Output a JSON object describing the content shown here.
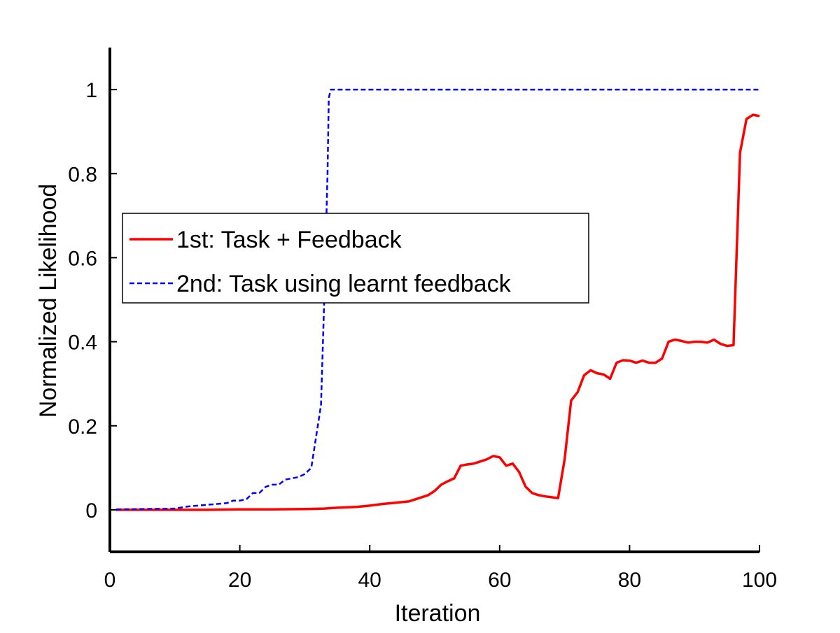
{
  "chart_data": {
    "type": "line",
    "title": "",
    "xlabel": "Iteration",
    "ylabel": "Normalized Likelihood",
    "xlim": [
      0,
      100
    ],
    "ylim": [
      -0.1,
      1.1
    ],
    "xticks": [
      0,
      20,
      40,
      60,
      80,
      100
    ],
    "yticks": [
      0,
      0.2,
      0.4,
      0.6,
      0.8,
      1
    ],
    "legend_position": "center-left",
    "grid": false,
    "series": [
      {
        "name": "1st: Task + Feedback",
        "color": "#ff0000",
        "line_style": "solid",
        "x": [
          1,
          5,
          10,
          15,
          20,
          25,
          30,
          33,
          35,
          38,
          40,
          42,
          44,
          46,
          47,
          48,
          49,
          50,
          51,
          52,
          53,
          54,
          55,
          56,
          57,
          58,
          59,
          60,
          61,
          62,
          63,
          64,
          65,
          66,
          67,
          68,
          69,
          70,
          71,
          72,
          73,
          74,
          75,
          76,
          77,
          78,
          79,
          80,
          81,
          82,
          83,
          84,
          85,
          86,
          87,
          88,
          89,
          90,
          91,
          92,
          93,
          94,
          95,
          96,
          97,
          98,
          99,
          100
        ],
        "y": [
          0,
          0,
          0,
          0,
          0.001,
          0.001,
          0.002,
          0.003,
          0.005,
          0.007,
          0.01,
          0.014,
          0.017,
          0.02,
          0.025,
          0.03,
          0.035,
          0.045,
          0.06,
          0.068,
          0.075,
          0.105,
          0.108,
          0.11,
          0.115,
          0.12,
          0.128,
          0.125,
          0.105,
          0.11,
          0.09,
          0.055,
          0.04,
          0.035,
          0.032,
          0.03,
          0.028,
          0.12,
          0.26,
          0.28,
          0.32,
          0.332,
          0.325,
          0.322,
          0.312,
          0.35,
          0.356,
          0.355,
          0.35,
          0.355,
          0.35,
          0.35,
          0.36,
          0.4,
          0.405,
          0.402,
          0.398,
          0.4,
          0.4,
          0.398,
          0.405,
          0.395,
          0.39,
          0.392,
          0.85,
          0.93,
          0.94,
          0.937
        ]
      },
      {
        "name": "2nd: Task using learnt feedback",
        "color": "#0000ff",
        "line_style": "dashed",
        "x": [
          1,
          5,
          10,
          12,
          15,
          18,
          19,
          20,
          21,
          22,
          23,
          24,
          25,
          26,
          27,
          28,
          29,
          30,
          31,
          32,
          32.5,
          33,
          33.5,
          33.7,
          34,
          100
        ],
        "y": [
          0.001,
          0.002,
          0.003,
          0.008,
          0.012,
          0.016,
          0.022,
          0.022,
          0.025,
          0.04,
          0.04,
          0.055,
          0.06,
          0.06,
          0.072,
          0.075,
          0.078,
          0.085,
          0.1,
          0.2,
          0.25,
          0.5,
          0.8,
          0.98,
          1.0,
          1.0
        ]
      }
    ]
  }
}
